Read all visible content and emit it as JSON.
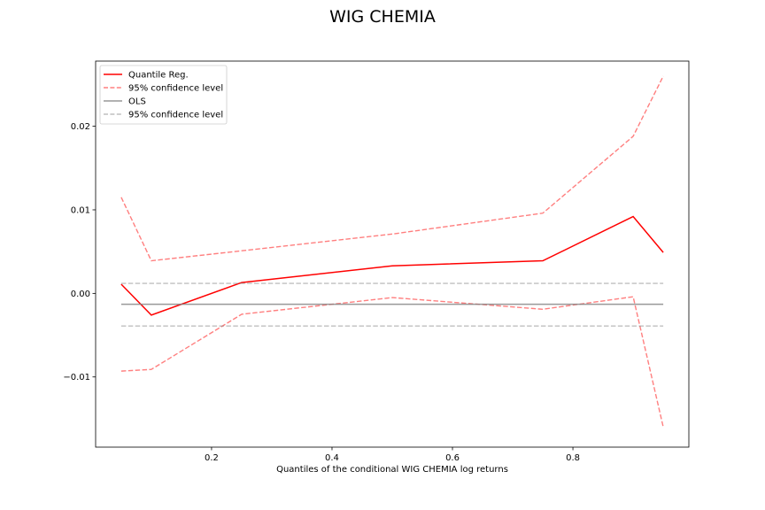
{
  "chart_data": {
    "type": "line",
    "title": "WIG CHEMIA",
    "xlabel": "Quantiles of the conditional WIG CHEMIA log returns",
    "ylabel": "",
    "xlim": [
      0.0075,
      0.9925
    ],
    "ylim": [
      -0.0184,
      0.0278
    ],
    "xticks": [
      0.2,
      0.4,
      0.6,
      0.8
    ],
    "xtick_labels": [
      "0.2",
      "0.4",
      "0.6",
      "0.8"
    ],
    "yticks": [
      -0.01,
      0.0,
      0.01,
      0.02
    ],
    "ytick_labels": [
      "−0.01",
      "0.00",
      "0.01",
      "0.02"
    ],
    "grid": false,
    "legend_position": "top-left",
    "x": [
      0.05,
      0.1,
      0.25,
      0.5,
      0.75,
      0.9,
      0.95
    ],
    "series": [
      {
        "name": "Quantile Reg.",
        "color": "#ff0000",
        "style": "solid",
        "values": [
          0.0011,
          -0.0026,
          0.0013,
          0.0033,
          0.0039,
          0.0092,
          0.0049
        ]
      },
      {
        "name": "95% confidence level",
        "color": "#ff0000",
        "style": "dashed",
        "opacity": 0.5,
        "values": [
          0.0115,
          0.0039,
          0.0051,
          0.0071,
          0.0096,
          0.0188,
          0.026
        ]
      },
      {
        "name": "",
        "color": "#ff0000",
        "style": "dashed",
        "opacity": 0.5,
        "values": [
          -0.0093,
          -0.0091,
          -0.0025,
          -0.0005,
          -0.0019,
          -0.0004,
          -0.016
        ]
      },
      {
        "name": "OLS",
        "color": "#808080",
        "style": "solid",
        "opacity": 0.8,
        "values": [
          -0.0013,
          -0.0013,
          -0.0013,
          -0.0013,
          -0.0013,
          -0.0013,
          -0.0013
        ]
      },
      {
        "name": "95% confidence level",
        "color": "#808080",
        "style": "dashed",
        "opacity": 0.5,
        "values": [
          0.0012,
          0.0012,
          0.0012,
          0.0012,
          0.0012,
          0.0012,
          0.0012
        ]
      },
      {
        "name": "",
        "color": "#808080",
        "style": "dashed",
        "opacity": 0.5,
        "values": [
          -0.0039,
          -0.0039,
          -0.0039,
          -0.0039,
          -0.0039,
          -0.0039,
          -0.0039
        ]
      }
    ],
    "legend": [
      {
        "label": "Quantile Reg.",
        "color": "#ff0000",
        "style": "solid",
        "opacity": 1
      },
      {
        "label": "95% confidence level",
        "color": "#ff0000",
        "style": "dashed",
        "opacity": 0.5
      },
      {
        "label": "OLS",
        "color": "#808080",
        "style": "solid",
        "opacity": 0.8
      },
      {
        "label": "95% confidence level",
        "color": "#808080",
        "style": "dashed",
        "opacity": 0.5
      }
    ]
  }
}
